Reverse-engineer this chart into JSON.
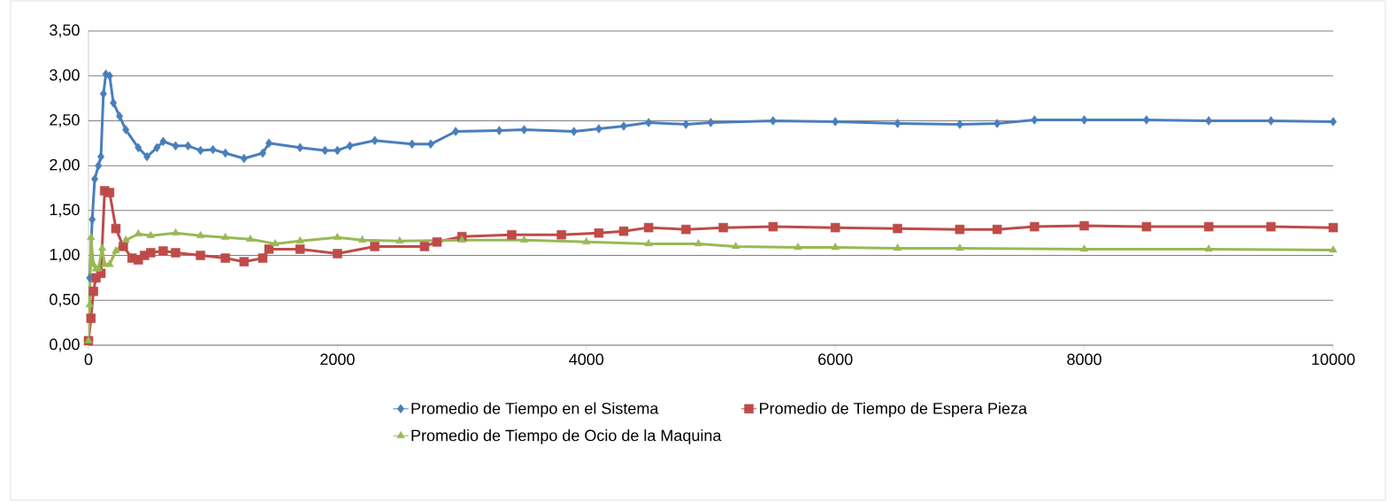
{
  "chart_data": {
    "type": "line",
    "xlim": [
      0,
      10000
    ],
    "ylim": [
      0,
      3.5
    ],
    "xticks": [
      0,
      2000,
      4000,
      6000,
      8000,
      10000
    ],
    "yticks": [
      {
        "value": 0,
        "label": "0,00"
      },
      {
        "value": 0.5,
        "label": "0,50"
      },
      {
        "value": 1,
        "label": "1,00"
      },
      {
        "value": 1.5,
        "label": "1,50"
      },
      {
        "value": 2,
        "label": "2,00"
      },
      {
        "value": 2.5,
        "label": "2,50"
      },
      {
        "value": 3,
        "label": "3,00"
      },
      {
        "value": 3.5,
        "label": "3,50"
      }
    ],
    "grid": "y",
    "legend": "bottom",
    "line_style": "solid",
    "series": [
      {
        "name": "Promedio de Tiempo en el Sistema",
        "color": "#4a7ebb",
        "marker": "diamond",
        "x": [
          10,
          30,
          50,
          80,
          100,
          120,
          140,
          170,
          200,
          250,
          300,
          400,
          470,
          550,
          600,
          700,
          800,
          900,
          1000,
          1100,
          1250,
          1400,
          1450,
          1700,
          1900,
          2000,
          2100,
          2300,
          2600,
          2750,
          2950,
          3300,
          3500,
          3900,
          4100,
          4300,
          4500,
          4800,
          5000,
          5500,
          6000,
          6500,
          7000,
          7300,
          7600,
          8000,
          8500,
          9000,
          9500,
          10000
        ],
        "values": [
          0.75,
          1.4,
          1.85,
          2.0,
          2.1,
          2.8,
          3.02,
          3.0,
          2.7,
          2.55,
          2.4,
          2.2,
          2.1,
          2.2,
          2.27,
          2.22,
          2.22,
          2.17,
          2.18,
          2.14,
          2.08,
          2.14,
          2.25,
          2.2,
          2.17,
          2.17,
          2.22,
          2.28,
          2.24,
          2.24,
          2.38,
          2.39,
          2.4,
          2.38,
          2.41,
          2.44,
          2.48,
          2.46,
          2.48,
          2.5,
          2.49,
          2.47,
          2.46,
          2.47,
          2.51,
          2.51,
          2.51,
          2.5,
          2.5,
          2.49
        ]
      },
      {
        "name": "Promedio de Tiempo de Espera Pieza",
        "color": "#be4b48",
        "marker": "square",
        "x": [
          0,
          20,
          40,
          60,
          100,
          130,
          170,
          220,
          280,
          350,
          400,
          450,
          500,
          600,
          700,
          900,
          1100,
          1250,
          1400,
          1450,
          1700,
          2000,
          2300,
          2700,
          2800,
          3000,
          3400,
          3800,
          4100,
          4300,
          4500,
          4800,
          5100,
          5500,
          6000,
          6500,
          7000,
          7300,
          7600,
          8000,
          8500,
          9000,
          9500,
          10000
        ],
        "values": [
          0.05,
          0.3,
          0.6,
          0.75,
          0.8,
          1.72,
          1.7,
          1.3,
          1.1,
          0.97,
          0.95,
          1.0,
          1.03,
          1.05,
          1.03,
          1.0,
          0.97,
          0.93,
          0.97,
          1.07,
          1.07,
          1.02,
          1.1,
          1.1,
          1.15,
          1.21,
          1.23,
          1.23,
          1.25,
          1.27,
          1.31,
          1.29,
          1.31,
          1.32,
          1.31,
          1.3,
          1.29,
          1.29,
          1.32,
          1.33,
          1.32,
          1.32,
          1.32,
          1.31
        ]
      },
      {
        "name": "Promedio de Tiempo de Ocio de la Maquina",
        "color": "#98b954",
        "marker": "triangle",
        "x": [
          0,
          10,
          20,
          40,
          60,
          80,
          110,
          130,
          170,
          220,
          300,
          400,
          500,
          700,
          900,
          1100,
          1300,
          1500,
          1700,
          2000,
          2200,
          2500,
          3000,
          3500,
          4000,
          4500,
          4900,
          5200,
          5700,
          6000,
          6500,
          7000,
          8000,
          9000,
          10000
        ],
        "values": [
          0.05,
          0.45,
          1.2,
          0.9,
          0.85,
          0.85,
          1.08,
          0.9,
          0.9,
          1.05,
          1.17,
          1.24,
          1.22,
          1.25,
          1.22,
          1.2,
          1.18,
          1.13,
          1.16,
          1.2,
          1.17,
          1.16,
          1.17,
          1.17,
          1.15,
          1.13,
          1.13,
          1.1,
          1.09,
          1.09,
          1.08,
          1.08,
          1.07,
          1.07,
          1.06
        ]
      }
    ]
  }
}
